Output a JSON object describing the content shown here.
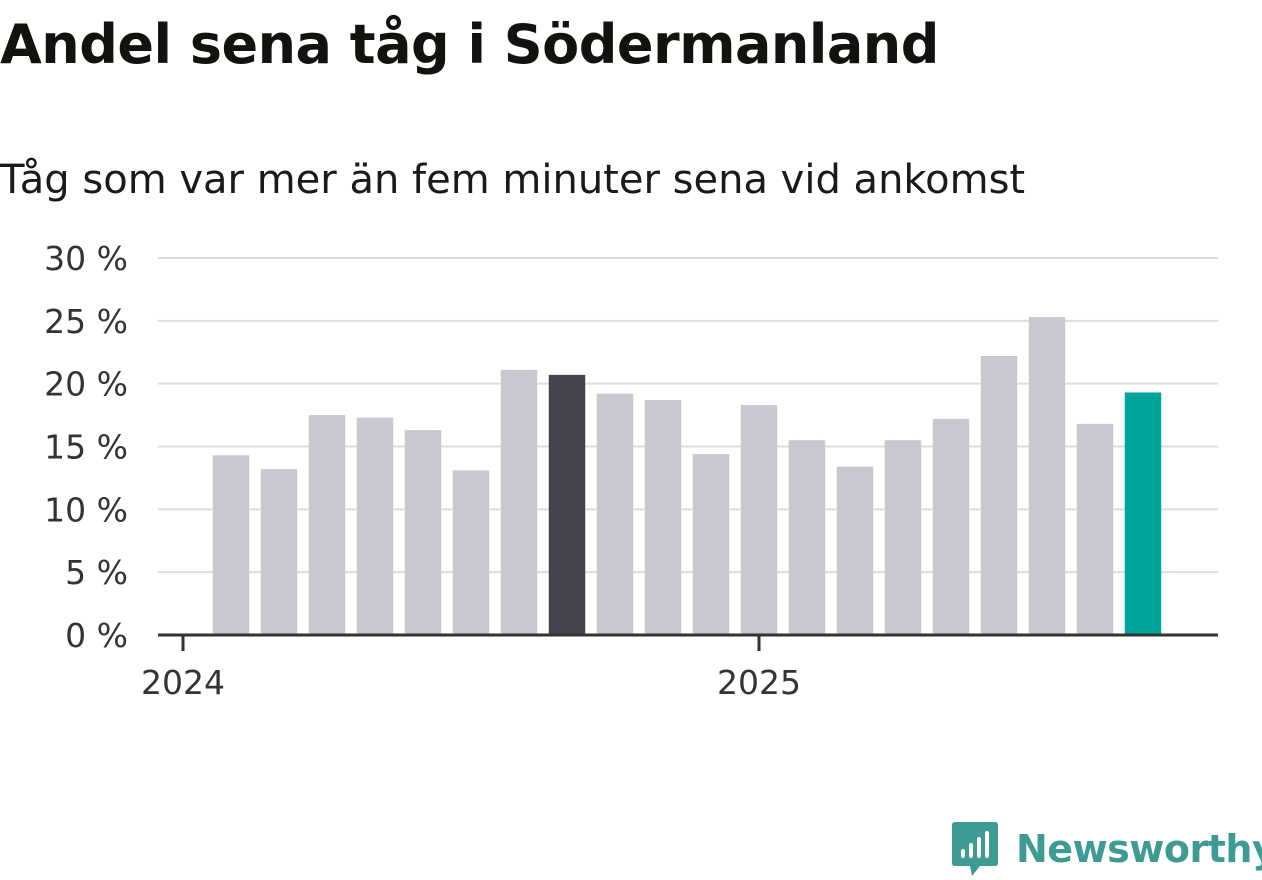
{
  "header": {
    "title": "Andel sena tåg i Södermanland",
    "subtitle": "Tåg som var mer än fem minuter sena vid ankomst"
  },
  "brand": {
    "name": "Newsworthy",
    "color": "#3e9a95"
  },
  "colors": {
    "bar_default": "#c9c8d1",
    "bar_highlight": "#43424d",
    "bar_latest": "#00a49a",
    "gridline": "#dddddd",
    "axis": "#333333"
  },
  "chart_data": {
    "type": "bar",
    "title": "Andel sena tåg i Södermanland",
    "subtitle": "Tåg som var mer än fem minuter sena vid ankomst",
    "xlabel": "",
    "ylabel": "",
    "ylim": [
      0,
      30
    ],
    "y_ticks": [
      0,
      5,
      10,
      15,
      20,
      25,
      30
    ],
    "y_tick_labels": [
      "0 %",
      "5 %",
      "10 %",
      "15 %",
      "20 %",
      "25 %",
      "30 %"
    ],
    "x_tick_labels": [
      {
        "label": "2024",
        "index": 0
      },
      {
        "label": "2025",
        "index": 12
      }
    ],
    "values": [
      14.3,
      13.2,
      17.5,
      17.3,
      16.3,
      13.1,
      21.1,
      20.7,
      19.2,
      18.7,
      14.4,
      18.3,
      15.5,
      13.4,
      15.5,
      17.2,
      22.2,
      25.3,
      16.8,
      19.3
    ],
    "highlight": [
      {
        "index": 7,
        "role": "highlight"
      },
      {
        "index": 19,
        "role": "latest"
      }
    ],
    "grid": true,
    "legend": "none"
  }
}
